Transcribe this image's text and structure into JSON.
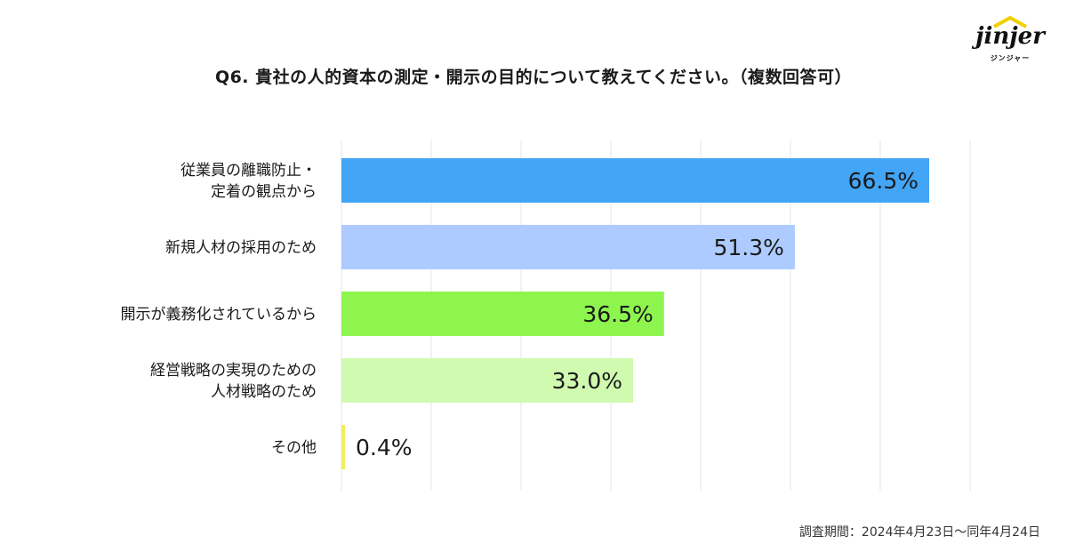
{
  "header": {
    "title": "Q6. 貴社の人的資本の測定・開示の目的について教えてください。（複数回答可）",
    "logo_text": "jinjer",
    "logo_sub": "ジンジャー"
  },
  "footer": {
    "survey_period": "調査期間：2024年4月23日〜同年4月24日"
  },
  "chart_data": {
    "type": "bar",
    "orientation": "horizontal",
    "title": "Q6. 貴社の人的資本の測定・開示の目的について教えてください。（複数回答可）",
    "categories": [
      [
        "従業員の離職防止・",
        "定着の観点から"
      ],
      [
        "新規人材の採用のため"
      ],
      [
        "開示が義務化されているから"
      ],
      [
        "経営戦略の実現のための",
        "人材戦略のため"
      ],
      [
        "その他"
      ]
    ],
    "values": [
      66.5,
      51.3,
      36.5,
      33.0,
      0.4
    ],
    "value_labels": [
      "66.5%",
      "51.3%",
      "36.5%",
      "33.0%",
      "0.4%"
    ],
    "colors": [
      "#42a5f5",
      "#aecbff",
      "#8ef54f",
      "#cffab0",
      "#f2ee5a"
    ],
    "xlim": [
      0,
      70
    ],
    "grid": true,
    "legend": "none",
    "xlabel": "",
    "ylabel": ""
  }
}
